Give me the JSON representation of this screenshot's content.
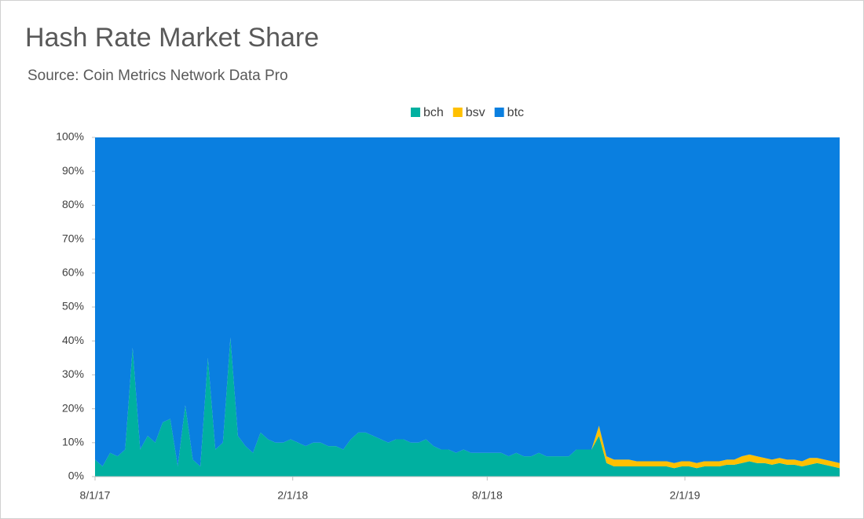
{
  "chart_data": {
    "type": "stacked-area",
    "title": "Hash Rate Market Share",
    "subtitle": "Source: Coin Metrics Network Data Pro",
    "x": [
      "8/1/17",
      "8/8/17",
      "8/15/17",
      "8/22/17",
      "8/29/17",
      "9/5/17",
      "9/12/17",
      "9/19/17",
      "9/26/17",
      "10/3/17",
      "10/10/17",
      "10/17/17",
      "10/24/17",
      "10/31/17",
      "11/7/17",
      "11/14/17",
      "11/21/17",
      "11/28/17",
      "12/5/17",
      "12/12/17",
      "12/19/17",
      "12/26/17",
      "1/2/18",
      "1/9/18",
      "1/16/18",
      "1/23/18",
      "1/30/18",
      "2/6/18",
      "2/13/18",
      "2/20/18",
      "2/27/18",
      "3/6/18",
      "3/13/18",
      "3/20/18",
      "3/27/18",
      "4/3/18",
      "4/10/18",
      "4/17/18",
      "4/24/18",
      "5/1/18",
      "5/8/18",
      "5/15/18",
      "5/22/18",
      "5/29/18",
      "6/5/18",
      "6/12/18",
      "6/19/18",
      "6/26/18",
      "7/3/18",
      "7/10/18",
      "7/17/18",
      "7/24/18",
      "7/31/18",
      "8/7/18",
      "8/14/18",
      "8/21/18",
      "8/28/18",
      "9/4/18",
      "9/11/18",
      "9/18/18",
      "9/25/18",
      "10/2/18",
      "10/9/18",
      "10/16/18",
      "10/23/18",
      "10/30/18",
      "11/6/18",
      "11/13/18",
      "11/20/18",
      "11/27/18",
      "12/4/18",
      "12/11/18",
      "12/18/18",
      "12/25/18",
      "1/1/19",
      "1/8/19",
      "1/15/19",
      "1/22/19",
      "1/29/19",
      "2/5/19",
      "2/12/19",
      "2/19/19",
      "2/26/19",
      "3/5/19",
      "3/12/19",
      "3/19/19",
      "3/26/19",
      "4/2/19",
      "4/9/19",
      "4/16/19",
      "4/23/19",
      "4/30/19",
      "5/7/19",
      "5/14/19",
      "5/21/19",
      "5/28/19",
      "6/4/19",
      "6/11/19",
      "6/18/19",
      "6/25/19"
    ],
    "series": [
      {
        "name": "bch",
        "color": "#00b0a0",
        "values": [
          5,
          3,
          7,
          6,
          8,
          38,
          8,
          12,
          10,
          16,
          17,
          3,
          21,
          5,
          3,
          35,
          8,
          10,
          41,
          12,
          9,
          7,
          13,
          11,
          10,
          10,
          11,
          10,
          9,
          10,
          10,
          9,
          9,
          8,
          11,
          13,
          13,
          12,
          11,
          10,
          11,
          11,
          10,
          10,
          11,
          9,
          8,
          8,
          7,
          8,
          7,
          7,
          7,
          7,
          7,
          6,
          7,
          6,
          6,
          7,
          6,
          6,
          6,
          6,
          8,
          8,
          8,
          12,
          4,
          3,
          3,
          3,
          3,
          3,
          3,
          3,
          3,
          2.5,
          3,
          3,
          2.5,
          3,
          3,
          3,
          3.5,
          3.5,
          4,
          4.5,
          4,
          4,
          3.5,
          4,
          3.5,
          3.5,
          3,
          3.5,
          4,
          3.5,
          3,
          2.5
        ]
      },
      {
        "name": "bsv",
        "color": "#ffc000",
        "values": [
          0,
          0,
          0,
          0,
          0,
          0,
          0,
          0,
          0,
          0,
          0,
          0,
          0,
          0,
          0,
          0,
          0,
          0,
          0,
          0,
          0,
          0,
          0,
          0,
          0,
          0,
          0,
          0,
          0,
          0,
          0,
          0,
          0,
          0,
          0,
          0,
          0,
          0,
          0,
          0,
          0,
          0,
          0,
          0,
          0,
          0,
          0,
          0,
          0,
          0,
          0,
          0,
          0,
          0,
          0,
          0,
          0,
          0,
          0,
          0,
          0,
          0,
          0,
          0,
          0,
          0,
          0,
          3,
          2,
          2,
          2,
          2,
          1.5,
          1.5,
          1.5,
          1.5,
          1.5,
          1.5,
          1.5,
          1.5,
          1.5,
          1.5,
          1.5,
          1.5,
          1.5,
          1.5,
          2,
          2,
          2,
          1.5,
          1.5,
          1.5,
          1.5,
          1.5,
          1.5,
          2,
          1.5,
          1.5,
          1.5,
          1.5
        ]
      },
      {
        "name": "btc",
        "color": "#0a7fe0",
        "values": [
          95,
          97,
          93,
          94,
          92,
          62,
          92,
          88,
          90,
          84,
          83,
          97,
          79,
          95,
          97,
          65,
          92,
          90,
          59,
          88,
          91,
          93,
          87,
          89,
          90,
          90,
          89,
          90,
          91,
          90,
          90,
          91,
          91,
          92,
          89,
          87,
          87,
          88,
          89,
          90,
          89,
          89,
          90,
          90,
          89,
          91,
          92,
          92,
          93,
          92,
          93,
          93,
          93,
          93,
          93,
          94,
          93,
          94,
          94,
          93,
          94,
          94,
          94,
          94,
          92,
          92,
          92,
          85,
          94,
          95,
          95,
          95,
          95.5,
          95.5,
          95.5,
          95.5,
          95.5,
          96,
          95.5,
          95.5,
          96,
          95.5,
          95.5,
          95.5,
          95,
          95,
          94,
          93.5,
          94,
          94.5,
          95,
          94.5,
          95,
          95,
          95.5,
          94.5,
          94.5,
          95,
          95.5,
          96
        ]
      }
    ],
    "xlim": [
      "8/1/17",
      "6/25/19"
    ],
    "xticks": [
      "8/1/17",
      "2/1/18",
      "8/1/18",
      "2/1/19"
    ],
    "ylim": [
      0,
      100
    ],
    "yticks": [
      {
        "value": 0,
        "label": "0%"
      },
      {
        "value": 10,
        "label": "10%"
      },
      {
        "value": 20,
        "label": "20%"
      },
      {
        "value": 30,
        "label": "30%"
      },
      {
        "value": 40,
        "label": "40%"
      },
      {
        "value": 50,
        "label": "50%"
      },
      {
        "value": 60,
        "label": "60%"
      },
      {
        "value": 70,
        "label": "70%"
      },
      {
        "value": 80,
        "label": "80%"
      },
      {
        "value": 90,
        "label": "90%"
      },
      {
        "value": 100,
        "label": "100%"
      }
    ],
    "legend": "top"
  }
}
